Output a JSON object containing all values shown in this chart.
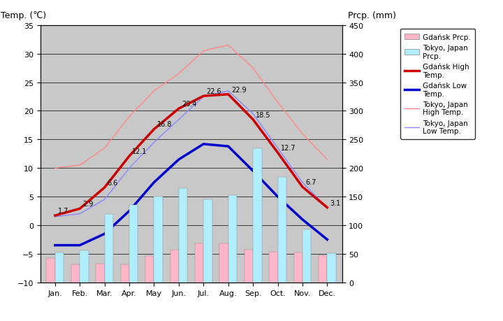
{
  "months": [
    "Jan.",
    "Feb.",
    "Mar.",
    "Apr.",
    "May",
    "Jun.",
    "Jul.",
    "Aug.",
    "Sep.",
    "Oct.",
    "Nov.",
    "Dec."
  ],
  "gdansk_high": [
    1.7,
    2.9,
    6.6,
    12.1,
    16.8,
    20.4,
    22.6,
    22.9,
    18.5,
    12.7,
    6.7,
    3.1
  ],
  "gdansk_low": [
    -3.5,
    -3.5,
    -1.5,
    2.5,
    7.5,
    11.5,
    14.2,
    13.8,
    9.5,
    5.0,
    1.0,
    -2.5
  ],
  "tokyo_high": [
    10.0,
    10.5,
    13.5,
    19.0,
    23.5,
    26.5,
    30.5,
    31.5,
    27.5,
    21.5,
    16.0,
    11.5
  ],
  "tokyo_low": [
    1.5,
    2.0,
    4.5,
    10.0,
    14.5,
    18.5,
    22.5,
    23.5,
    19.5,
    13.5,
    7.5,
    3.0
  ],
  "gdansk_prcp_mm": [
    43,
    32,
    33,
    31,
    46,
    57,
    68,
    68,
    57,
    53,
    52,
    47
  ],
  "tokyo_prcp_mm": [
    52,
    56,
    120,
    135,
    150,
    165,
    145,
    152,
    235,
    185,
    93,
    51
  ],
  "temp_ylim": [
    -10,
    35
  ],
  "prcp_ylim": [
    0,
    450
  ],
  "background_color": "#c8c8c8",
  "fig_background": "#ffffff",
  "gdansk_high_color": "#cc0000",
  "gdansk_low_color": "#0000cc",
  "tokyo_high_color": "#ff8888",
  "tokyo_low_color": "#8888ff",
  "gdansk_prcp_color": "#ffb6c8",
  "tokyo_prcp_color": "#b0eeff",
  "title_left": "Temp. (℃)",
  "title_right": "Prcp. (mm)",
  "legend_labels": [
    "Gdańsk Prcp.",
    "Tokyo, Japan\nPrcp.",
    "Gdańsk High\nTemp.",
    "Gdańsk Low\nTemp.",
    "Tokyo, Japan\nHigh Temp.",
    "Tokyo, Japan\nLow Temp."
  ]
}
